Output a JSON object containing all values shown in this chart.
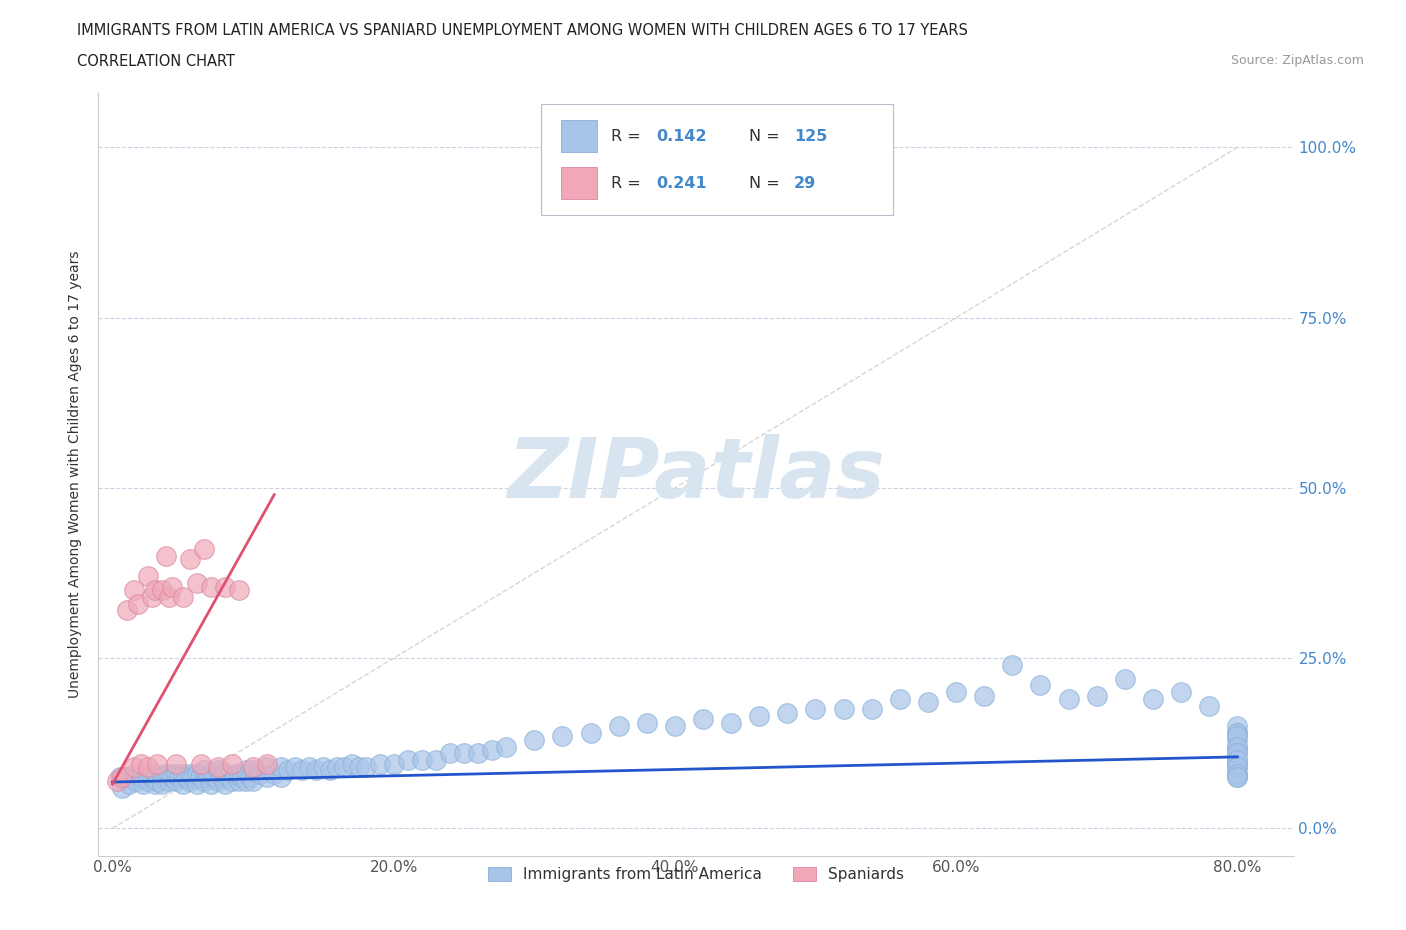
{
  "title_line1": "IMMIGRANTS FROM LATIN AMERICA VS SPANIARD UNEMPLOYMENT AMONG WOMEN WITH CHILDREN AGES 6 TO 17 YEARS",
  "title_line2": "CORRELATION CHART",
  "source_text": "Source: ZipAtlas.com",
  "ylabel": "Unemployment Among Women with Children Ages 6 to 17 years",
  "xlim": [
    -0.01,
    0.84
  ],
  "ylim": [
    -0.04,
    1.08
  ],
  "xtick_vals": [
    0.0,
    0.2,
    0.4,
    0.6,
    0.8
  ],
  "xtick_labels": [
    "0.0%",
    "20.0%",
    "40.0%",
    "60.0%",
    "80.0%"
  ],
  "ytick_vals": [
    0.0,
    0.25,
    0.5,
    0.75,
    1.0
  ],
  "ytick_labels": [
    "0.0%",
    "25.0%",
    "50.0%",
    "75.0%",
    "100.0%"
  ],
  "blue_color": "#a8c4e8",
  "pink_color": "#f0a8b8",
  "blue_line_color": "#2255cc",
  "pink_line_color": "#e05070",
  "grid_color": "#c8d4e4",
  "watermark_text": "ZIPatlas",
  "watermark_color": "#d8e4f0",
  "legend_R_blue": "0.142",
  "legend_N_blue": "125",
  "legend_R_pink": "0.241",
  "legend_N_pink": "29",
  "legend_label_color": "#333333",
  "legend_value_color": "#4488cc",
  "blue_scatter_x": [
    0.005,
    0.007,
    0.01,
    0.012,
    0.015,
    0.017,
    0.02,
    0.022,
    0.025,
    0.025,
    0.028,
    0.03,
    0.03,
    0.032,
    0.035,
    0.035,
    0.038,
    0.04,
    0.04,
    0.042,
    0.045,
    0.045,
    0.047,
    0.05,
    0.05,
    0.052,
    0.055,
    0.055,
    0.057,
    0.06,
    0.06,
    0.062,
    0.065,
    0.065,
    0.068,
    0.07,
    0.07,
    0.072,
    0.075,
    0.075,
    0.078,
    0.08,
    0.08,
    0.082,
    0.085,
    0.087,
    0.09,
    0.09,
    0.092,
    0.095,
    0.095,
    0.098,
    0.1,
    0.1,
    0.105,
    0.11,
    0.11,
    0.115,
    0.12,
    0.12,
    0.125,
    0.13,
    0.135,
    0.14,
    0.145,
    0.15,
    0.155,
    0.16,
    0.165,
    0.17,
    0.175,
    0.18,
    0.19,
    0.2,
    0.21,
    0.22,
    0.23,
    0.24,
    0.25,
    0.26,
    0.27,
    0.28,
    0.3,
    0.32,
    0.34,
    0.36,
    0.38,
    0.4,
    0.42,
    0.44,
    0.46,
    0.48,
    0.5,
    0.52,
    0.54,
    0.56,
    0.58,
    0.6,
    0.62,
    0.64,
    0.66,
    0.68,
    0.7,
    0.72,
    0.74,
    0.76,
    0.78,
    0.8,
    0.8,
    0.8,
    0.8,
    0.8,
    0.8,
    0.8,
    0.8,
    0.8,
    0.8,
    0.8,
    0.8,
    0.8,
    0.8,
    0.8,
    0.8,
    0.8,
    0.8
  ],
  "blue_scatter_y": [
    0.075,
    0.06,
    0.075,
    0.065,
    0.08,
    0.07,
    0.075,
    0.065,
    0.07,
    0.08,
    0.075,
    0.065,
    0.08,
    0.07,
    0.075,
    0.065,
    0.08,
    0.07,
    0.08,
    0.075,
    0.07,
    0.08,
    0.075,
    0.065,
    0.08,
    0.075,
    0.07,
    0.08,
    0.075,
    0.065,
    0.08,
    0.075,
    0.07,
    0.085,
    0.075,
    0.065,
    0.08,
    0.075,
    0.07,
    0.085,
    0.075,
    0.065,
    0.08,
    0.075,
    0.07,
    0.08,
    0.07,
    0.08,
    0.075,
    0.07,
    0.085,
    0.075,
    0.07,
    0.085,
    0.08,
    0.075,
    0.09,
    0.08,
    0.075,
    0.09,
    0.085,
    0.09,
    0.085,
    0.09,
    0.085,
    0.09,
    0.085,
    0.09,
    0.09,
    0.095,
    0.09,
    0.09,
    0.095,
    0.095,
    0.1,
    0.1,
    0.1,
    0.11,
    0.11,
    0.11,
    0.115,
    0.12,
    0.13,
    0.135,
    0.14,
    0.15,
    0.155,
    0.15,
    0.16,
    0.155,
    0.165,
    0.17,
    0.175,
    0.175,
    0.175,
    0.19,
    0.185,
    0.2,
    0.195,
    0.24,
    0.21,
    0.19,
    0.195,
    0.22,
    0.19,
    0.2,
    0.18,
    0.075,
    0.08,
    0.09,
    0.095,
    0.1,
    0.11,
    0.12,
    0.13,
    0.14,
    0.15,
    0.14,
    0.135,
    0.12,
    0.11,
    0.1,
    0.09,
    0.08,
    0.075
  ],
  "pink_scatter_x": [
    0.003,
    0.007,
    0.01,
    0.015,
    0.015,
    0.018,
    0.02,
    0.025,
    0.025,
    0.028,
    0.03,
    0.032,
    0.035,
    0.038,
    0.04,
    0.042,
    0.045,
    0.05,
    0.055,
    0.06,
    0.063,
    0.065,
    0.07,
    0.075,
    0.08,
    0.085,
    0.09,
    0.1,
    0.11
  ],
  "pink_scatter_y": [
    0.07,
    0.075,
    0.32,
    0.09,
    0.35,
    0.33,
    0.095,
    0.37,
    0.09,
    0.34,
    0.35,
    0.095,
    0.35,
    0.4,
    0.34,
    0.355,
    0.095,
    0.34,
    0.395,
    0.36,
    0.095,
    0.41,
    0.355,
    0.09,
    0.355,
    0.095,
    0.35,
    0.09,
    0.095
  ],
  "blue_trend_x": [
    0.0,
    0.8
  ],
  "blue_trend_y": [
    0.068,
    0.105
  ],
  "pink_trend_x": [
    0.0,
    0.115
  ],
  "pink_trend_y": [
    0.065,
    0.49
  ],
  "diag_line_x": [
    0.0,
    0.8
  ],
  "diag_line_y": [
    0.0,
    1.0
  ],
  "background_color": "#ffffff",
  "right_axis_color": "#4488cc",
  "spine_color": "#cccccc"
}
